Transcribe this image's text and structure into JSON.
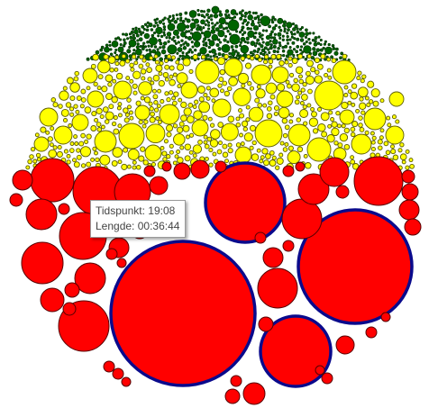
{
  "chart_data": {
    "type": "bubble",
    "title": "",
    "groups": [
      {
        "color": "#006400",
        "stroke": "#003300",
        "approx_count": 700,
        "radius_range": [
          1,
          7
        ]
      },
      {
        "color": "#ffff00",
        "stroke": "#5a5a00",
        "approx_count": 600,
        "radius_range": [
          2,
          18
        ]
      },
      {
        "color": "#ff0000",
        "stroke": "#550000",
        "approx_count": 70,
        "radius_range": [
          3,
          80
        ]
      }
    ],
    "highlight": {
      "stroke": "#0a0a8c"
    },
    "tooltip": {
      "timepoint_label": "Tidspunkt:",
      "timepoint_value": "19:08",
      "length_label": "Lengde:",
      "length_value": "00:36:44"
    }
  }
}
